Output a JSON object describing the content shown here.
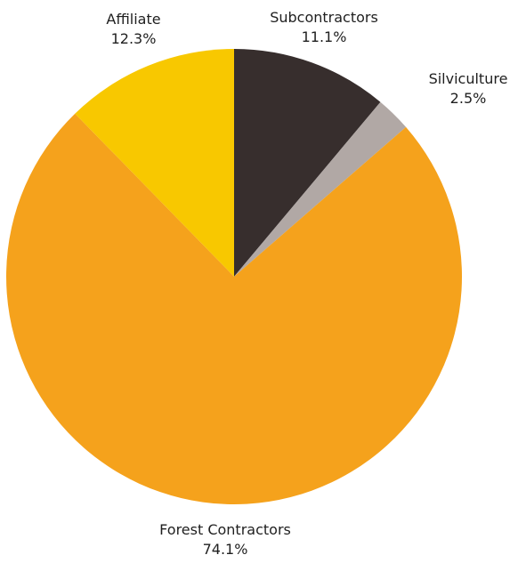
{
  "chart_data": {
    "type": "pie",
    "slices": [
      {
        "label": "Subcontractors",
        "value": 11.1,
        "value_label": "11.1%",
        "color": "#372e2d"
      },
      {
        "label": "Silviculture",
        "value": 2.5,
        "value_label": "2.5%",
        "color": "#b1a8a5"
      },
      {
        "label": "Forest Contractors",
        "value": 74.1,
        "value_label": "74.1%",
        "color": "#f5a21c"
      },
      {
        "label": "Affiliate",
        "value": 12.3,
        "value_label": "12.3%",
        "color": "#f8c800"
      }
    ],
    "start": "12 o'clock",
    "direction": "clockwise",
    "legend": "none",
    "labels": "outside"
  }
}
